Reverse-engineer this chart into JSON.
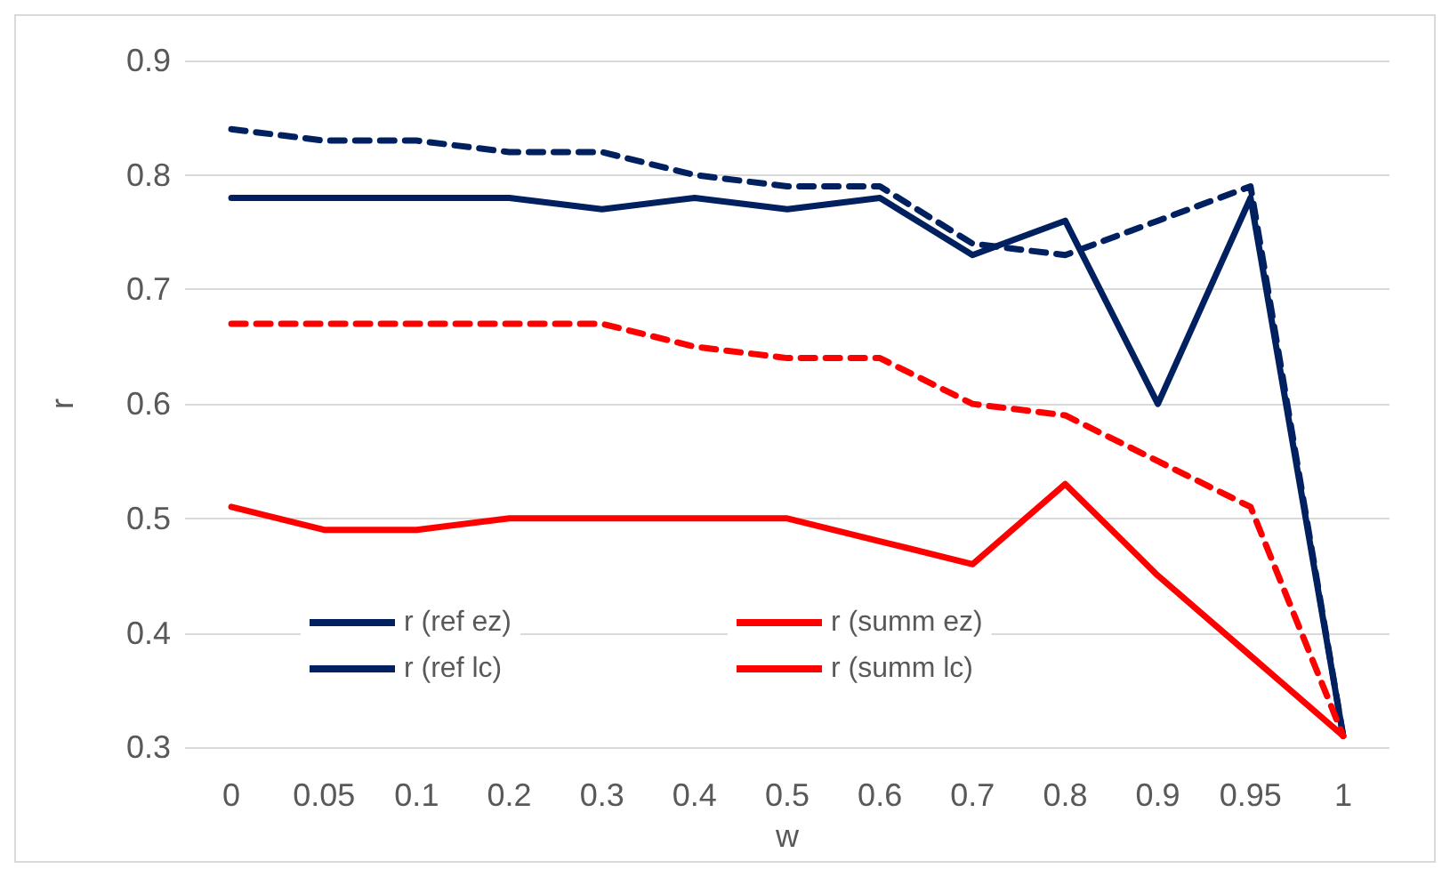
{
  "chart_data": {
    "type": "line",
    "xlabel": "w",
    "ylabel": "r",
    "categories": [
      "0",
      "0.05",
      "0.1",
      "0.2",
      "0.3",
      "0.4",
      "0.5",
      "0.6",
      "0.7",
      "0.8",
      "0.9",
      "0.95",
      "1"
    ],
    "series": [
      {
        "name": "r (ref ez)",
        "color": "#002060",
        "line_style": "solid",
        "values": [
          0.78,
          0.78,
          0.78,
          0.78,
          0.77,
          0.78,
          0.77,
          0.78,
          0.73,
          0.76,
          0.6,
          0.78,
          0.31
        ]
      },
      {
        "name": "r (ref lc)",
        "color": "#002060",
        "line_style": "dashed",
        "values": [
          0.84,
          0.83,
          0.83,
          0.82,
          0.82,
          0.8,
          0.79,
          0.79,
          0.74,
          0.73,
          0.76,
          0.79,
          0.31
        ]
      },
      {
        "name": "r (summ ez)",
        "color": "#ff0000",
        "line_style": "solid",
        "values": [
          0.51,
          0.49,
          0.49,
          0.5,
          0.5,
          0.5,
          0.5,
          0.48,
          0.46,
          0.53,
          0.45,
          0.38,
          0.31
        ]
      },
      {
        "name": "r (summ lc)",
        "color": "#ff0000",
        "line_style": "dashed",
        "values": [
          0.67,
          0.67,
          0.67,
          0.67,
          0.67,
          0.65,
          0.64,
          0.64,
          0.6,
          0.59,
          0.55,
          0.51,
          0.31
        ]
      }
    ],
    "ylim": [
      0.3,
      0.9
    ],
    "yticks": [
      0.3,
      0.4,
      0.5,
      0.6,
      0.7,
      0.8,
      0.9
    ],
    "grid": "y",
    "legend": "bottom",
    "marker": "none"
  }
}
